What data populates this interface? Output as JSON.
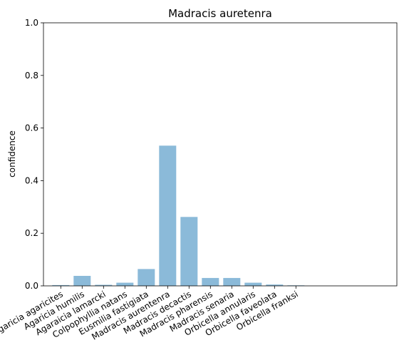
{
  "chart_data": {
    "type": "bar",
    "title": "Madracis auretenra",
    "xlabel": "",
    "ylabel": "confidence",
    "ylim": [
      0,
      1.0
    ],
    "yticks": [
      "0.0",
      "0.2",
      "0.4",
      "0.6",
      "0.8",
      "1.0"
    ],
    "grid": false,
    "categories": [
      "Agaricia agaricites",
      "Agaricia humilis",
      "Agaraicia lamarcki",
      "Colpophyllia natans",
      "Eusmilia fastigiata",
      "Madracis aurentenra",
      "Madracis decactis",
      "Madracis pharensis",
      "Madracis senaria",
      "Orbicella annularis",
      "Orbicella faveolata",
      "Orbicella franksi"
    ],
    "values": [
      0.003,
      0.038,
      0.004,
      0.012,
      0.064,
      0.533,
      0.262,
      0.03,
      0.03,
      0.012,
      0.005,
      0.002
    ],
    "bar_color": "#8bbad9"
  }
}
